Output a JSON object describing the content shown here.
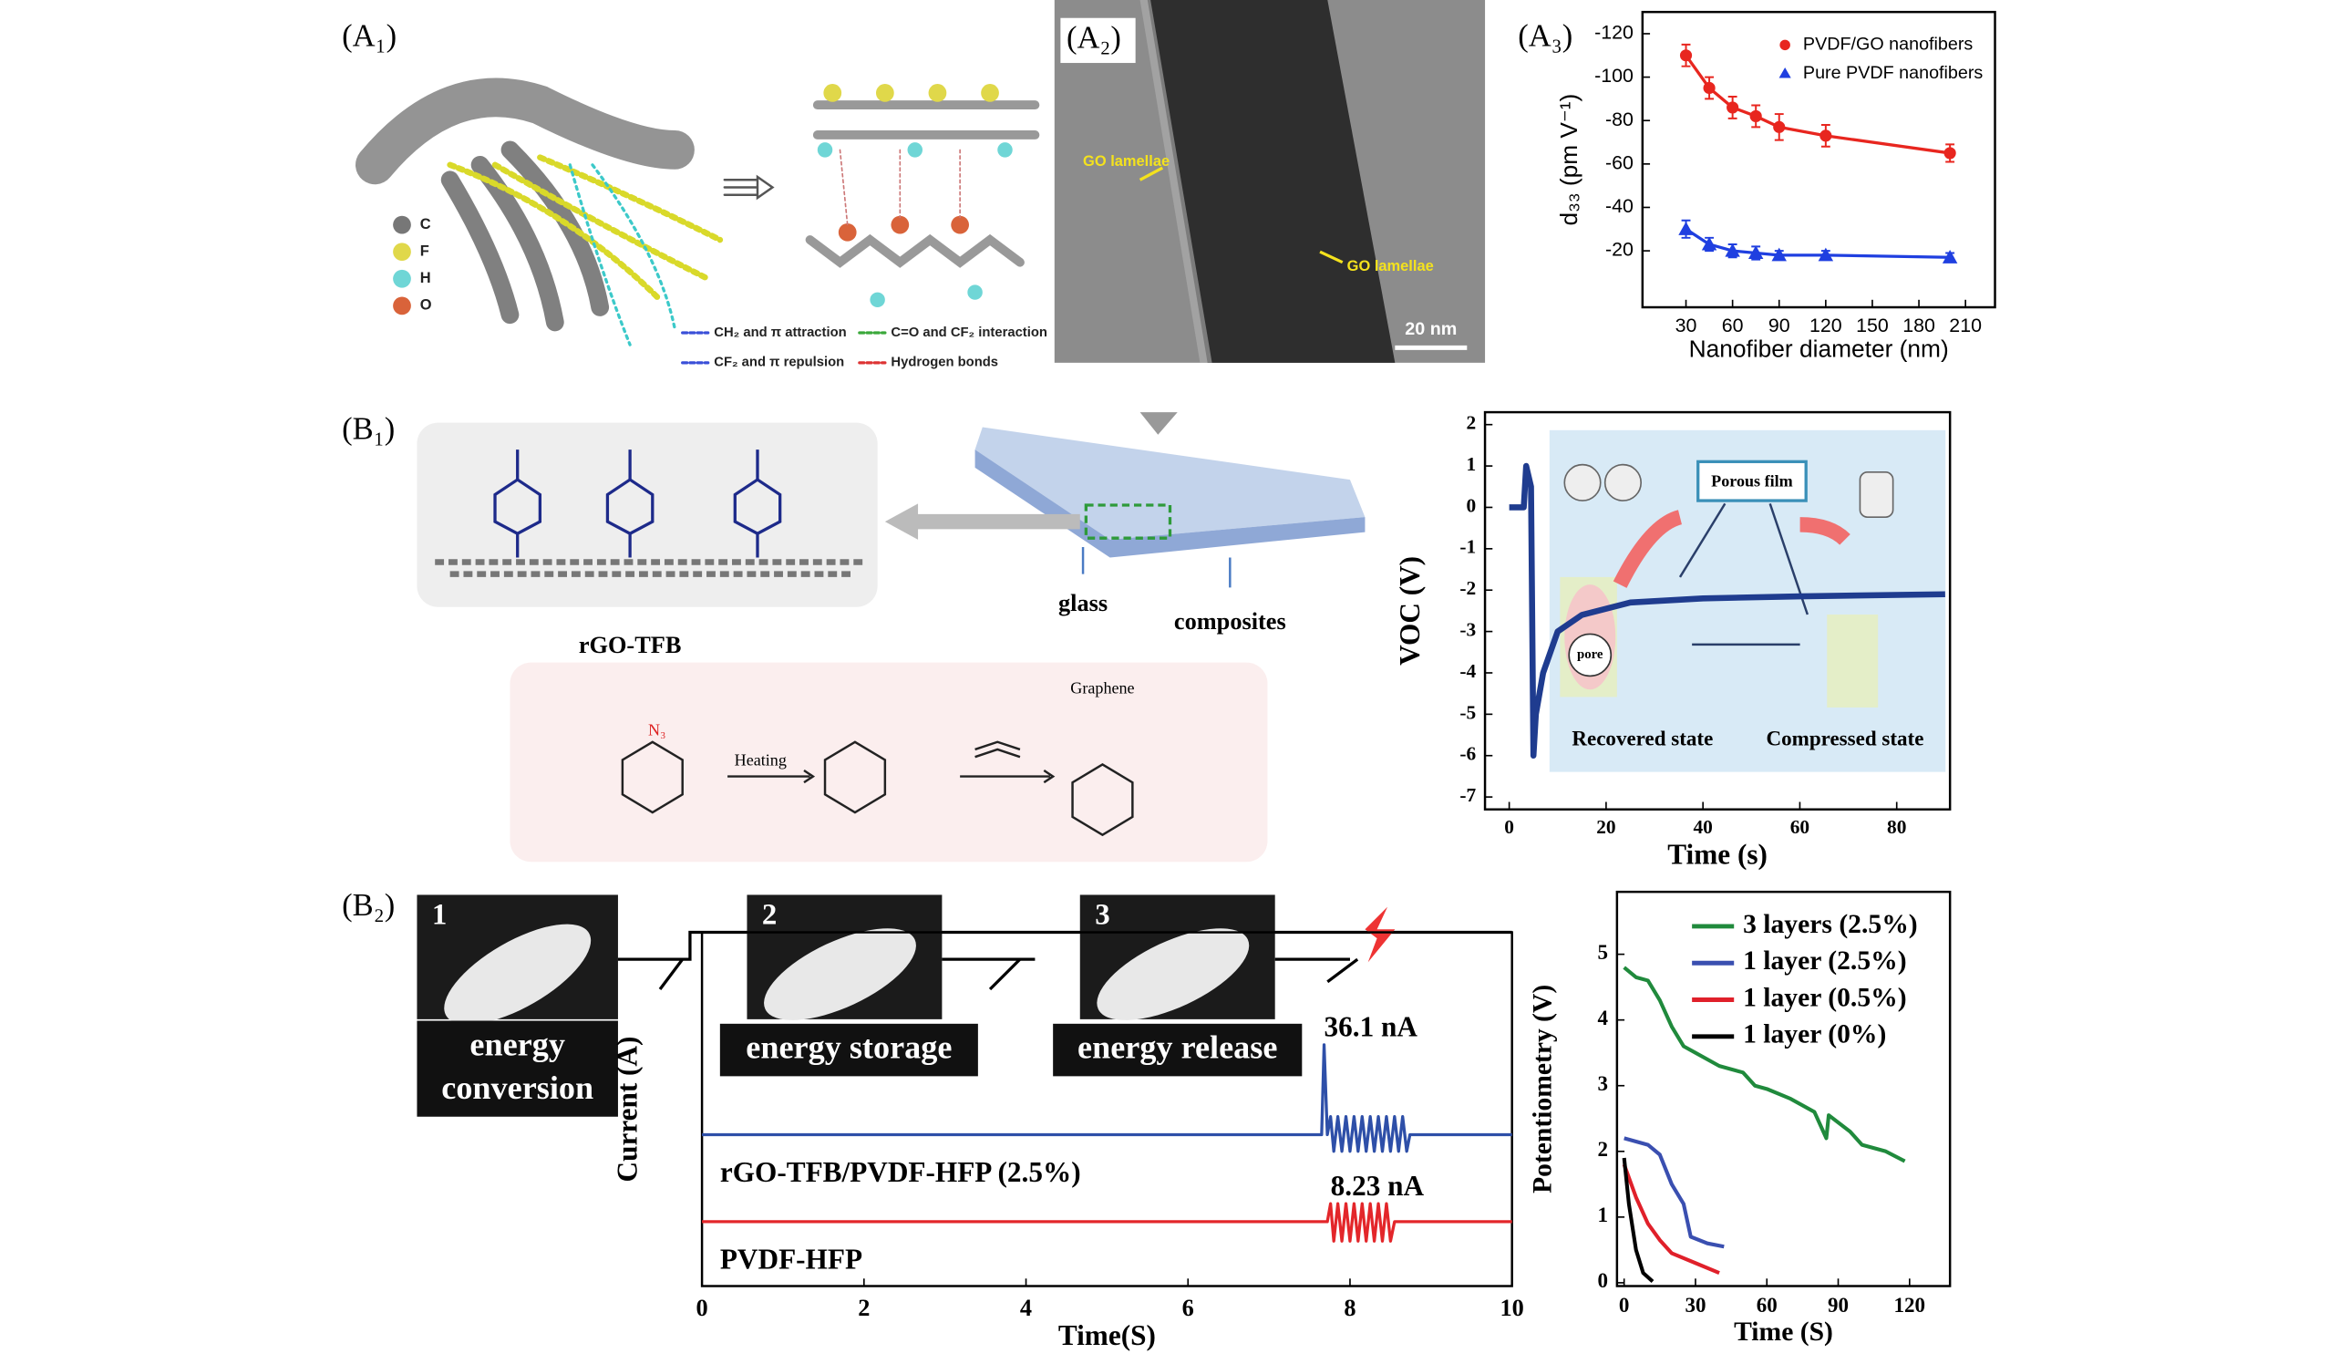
{
  "panel_labels": [
    "(A₁)",
    "(A₂)",
    "(A₃)",
    "(B₁)",
    "(B₂)"
  ],
  "a1": {
    "atom_legend": [
      "C",
      "F",
      "H",
      "O"
    ],
    "interactions": [
      "CH₂ and π attraction",
      "C=O and CF₂ interaction",
      "CF₂ and π repulsion",
      "Hydrogen bonds"
    ]
  },
  "a2": {
    "labels": [
      "GO lamellae",
      "GO lamellae"
    ],
    "scale_bar": "20 nm"
  },
  "b1": {
    "material": "rGO-TFB",
    "substrate_labels": [
      "glass",
      "composites"
    ],
    "reaction": {
      "reagent": "N₃",
      "step": "Heating",
      "product": "Graphene"
    },
    "mechanism": {
      "film": "Porous film",
      "pore": "pore",
      "states": [
        "Recovered state",
        "Compressed state"
      ]
    }
  },
  "b2": {
    "steps": [
      {
        "number": "1",
        "label_lines": [
          "energy",
          "conversion"
        ]
      },
      {
        "number": "2",
        "label_lines": [
          "energy storage"
        ]
      },
      {
        "number": "3",
        "label_lines": [
          "energy release"
        ]
      }
    ]
  },
  "chart_data": [
    {
      "type": "line",
      "xlabel": "Nanofiber diameter (nm)",
      "ylabel": "d₃₃ (pm V⁻¹)",
      "xlim": [
        2,
        229
      ],
      "xticks": [
        30,
        60,
        90,
        120,
        150,
        180,
        210
      ],
      "ylim": [
        6,
        -130
      ],
      "yticks": [
        -120,
        -100,
        -80,
        -60,
        -40,
        -20
      ],
      "legend": "upper right",
      "series": [
        {
          "name": "PVDF/GO nanofibers",
          "color": "#e8261f",
          "marker": "circle",
          "x": [
            30,
            45,
            60,
            75,
            90,
            120,
            200
          ],
          "values": [
            -110,
            -95,
            -86,
            -82,
            -77,
            -73,
            -65
          ],
          "errors": [
            5,
            5,
            5,
            5,
            6,
            5,
            4
          ]
        },
        {
          "name": "Pure PVDF nanofibers",
          "color": "#1f3fe0",
          "marker": "triangle",
          "x": [
            30,
            45,
            60,
            75,
            90,
            120,
            200
          ],
          "values": [
            -30,
            -23,
            -20,
            -19,
            -18,
            -18,
            -17
          ],
          "errors": [
            4,
            3,
            3,
            3,
            2,
            2,
            2
          ]
        }
      ]
    },
    {
      "type": "line",
      "xlabel": "Time (s)",
      "ylabel": "VOC (V)",
      "color": "#1f3c8f",
      "xlim": [
        -5,
        91
      ],
      "xticks": [
        0,
        20,
        40,
        60,
        80
      ],
      "ylim": [
        -7.3,
        2.3
      ],
      "yticks": [
        2,
        1,
        0,
        -1,
        -2,
        -3,
        -4,
        -5,
        -6,
        -7
      ],
      "x": [
        0,
        3,
        3.5,
        4.5,
        5,
        5.5,
        7,
        10,
        15,
        25,
        40,
        60,
        90
      ],
      "values": [
        0,
        0,
        1,
        0.5,
        -6,
        -5,
        -4,
        -3,
        -2.6,
        -2.3,
        -2.2,
        -2.15,
        -2.1
      ]
    },
    {
      "type": "line",
      "xlabel": "Time(S)",
      "ylabel": "Current (A)",
      "xlim": [
        0,
        10
      ],
      "xticks": [
        0,
        2,
        4,
        6,
        8,
        10
      ],
      "ylim": [
        0,
        100
      ],
      "annotations": [
        "36.1 nA",
        "8.23 nA"
      ],
      "series": [
        {
          "name": "rGO-TFB/PVDF-HFP (2.5%)",
          "color": "#2e4fa8",
          "x": [
            0,
            7.65,
            7.68,
            7.72,
            7.76,
            7.8,
            7.85,
            7.9,
            7.95,
            8.0,
            8.05,
            8.1,
            8.15,
            8.2,
            8.25,
            8.3,
            8.35,
            8.4,
            8.45,
            8.5,
            8.55,
            8.6,
            8.65,
            8.7,
            8.74,
            10
          ],
          "values": [
            42.8,
            42.8,
            68.2,
            42.8,
            47.9,
            38.1,
            47.9,
            38.1,
            47.9,
            38.1,
            47.9,
            38.1,
            47.9,
            38.1,
            47.9,
            38.1,
            47.9,
            38.1,
            47.9,
            38.1,
            47.9,
            38.1,
            47.9,
            38.1,
            42.8,
            42.8
          ]
        },
        {
          "name": "PVDF-HFP",
          "color": "#e3262a",
          "x": [
            0,
            7.72,
            7.76,
            7.8,
            7.85,
            7.9,
            7.95,
            8.0,
            8.05,
            8.1,
            8.15,
            8.2,
            8.25,
            8.3,
            8.35,
            8.4,
            8.45,
            8.5,
            8.55,
            10
          ],
          "values": [
            18.2,
            18.2,
            23.3,
            12.7,
            23.3,
            12.7,
            23.3,
            12.7,
            23.3,
            12.7,
            23.3,
            12.7,
            23.3,
            12.7,
            23.3,
            12.7,
            23.3,
            12.7,
            18.2,
            18.2
          ]
        }
      ]
    },
    {
      "type": "line",
      "xlabel": "Time (S)",
      "ylabel": "Potentiometry (V)",
      "xlim": [
        -3,
        137
      ],
      "xticks": [
        0,
        30,
        60,
        90,
        120
      ],
      "ylim": [
        -0.05,
        5.95
      ],
      "yticks": [
        0,
        1,
        2,
        3,
        4,
        5
      ],
      "legend": "upper left",
      "series": [
        {
          "name": "3 layers (2.5%)",
          "color": "#208a3c",
          "x": [
            0,
            5,
            10,
            15,
            20,
            25,
            30,
            40,
            50,
            55,
            60,
            70,
            80,
            85,
            86,
            95,
            100,
            110,
            118
          ],
          "values": [
            4.8,
            4.65,
            4.6,
            4.3,
            3.9,
            3.6,
            3.5,
            3.3,
            3.2,
            3.0,
            2.95,
            2.8,
            2.6,
            2.2,
            2.55,
            2.3,
            2.1,
            2.0,
            1.85
          ]
        },
        {
          "name": "1 layer (2.5%)",
          "color": "#3a4fb0",
          "x": [
            0,
            10,
            15,
            20,
            25,
            28,
            35,
            42
          ],
          "values": [
            2.2,
            2.1,
            1.95,
            1.5,
            1.2,
            0.7,
            0.6,
            0.55
          ]
        },
        {
          "name": "1 layer (0.5%)",
          "color": "#e0202a",
          "x": [
            0,
            5,
            10,
            15,
            20,
            30,
            40
          ],
          "values": [
            1.8,
            1.3,
            0.9,
            0.65,
            0.45,
            0.3,
            0.15
          ]
        },
        {
          "name": "1 layer (0%)",
          "color": "#000000",
          "x": [
            0,
            2,
            5,
            8,
            12
          ],
          "values": [
            1.9,
            1.2,
            0.5,
            0.15,
            0.02
          ]
        }
      ]
    }
  ]
}
